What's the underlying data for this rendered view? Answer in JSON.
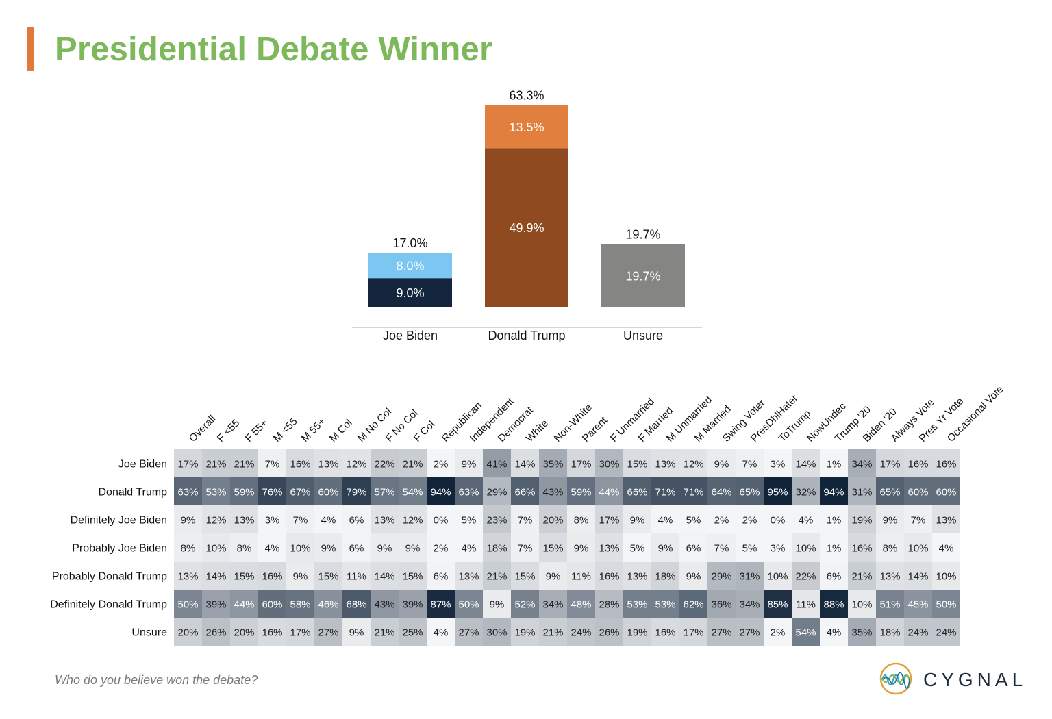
{
  "title": "Presidential Debate Winner",
  "footnote": "Who do you believe won the debate?",
  "brand": {
    "name": "CYGNAL"
  },
  "chart_data": [
    {
      "type": "bar",
      "stacked": true,
      "categories": [
        "Joe Biden",
        "Donald Trump",
        "Unsure"
      ],
      "totals": [
        17.0,
        63.3,
        19.7
      ],
      "total_labels": [
        "17.0%",
        "63.3%",
        "19.7%"
      ],
      "segments": [
        [
          {
            "value": 9.0,
            "label": "9.0%",
            "color": "#14263E"
          },
          {
            "value": 8.0,
            "label": "8.0%",
            "color": "#7CC7F2"
          }
        ],
        [
          {
            "value": 49.9,
            "label": "49.9%",
            "color": "#8F4A1F"
          },
          {
            "value": 13.5,
            "label": "13.5%",
            "color": "#E07F3E"
          }
        ],
        [
          {
            "value": 19.7,
            "label": "19.7%",
            "color": "#858684"
          }
        ]
      ],
      "ylim": [
        0,
        63.3
      ]
    },
    {
      "type": "heatmap",
      "columns": [
        "Overall",
        "F <55",
        "F 55+",
        "M <55",
        "M 55+",
        "M Col",
        "M No Col",
        "F No Col",
        "F Col",
        "Republican",
        "Independent",
        "Democrat",
        "White",
        "Non-White",
        "Parent",
        "F Unmarried",
        "F Married",
        "M Unmarried",
        "M Married",
        "Swing Voter",
        "PresDblHater",
        "ToTrump",
        "NowUndec",
        "Trump '20",
        "Biden '20",
        "Always Vote",
        "Pres Yr Vote",
        "Occasional Vote"
      ],
      "rows": [
        "Joe Biden",
        "Donald Trump",
        "Definitely Joe Biden",
        "Probably Joe Biden",
        "Probably Donald Trump",
        "Definitely Donald Trump",
        "Unsure"
      ],
      "values": [
        [
          17,
          21,
          21,
          7,
          16,
          13,
          12,
          22,
          21,
          2,
          9,
          41,
          14,
          35,
          17,
          30,
          15,
          13,
          12,
          9,
          7,
          3,
          14,
          1,
          34,
          17,
          16,
          16
        ],
        [
          63,
          53,
          59,
          76,
          67,
          60,
          79,
          57,
          54,
          94,
          63,
          29,
          66,
          43,
          59,
          44,
          66,
          71,
          71,
          64,
          65,
          95,
          32,
          94,
          31,
          65,
          60,
          60
        ],
        [
          9,
          12,
          13,
          3,
          7,
          4,
          6,
          13,
          12,
          0,
          5,
          23,
          7,
          20,
          8,
          17,
          9,
          4,
          5,
          2,
          2,
          0,
          4,
          1,
          19,
          9,
          7,
          13
        ],
        [
          8,
          10,
          8,
          4,
          10,
          9,
          6,
          9,
          9,
          2,
          4,
          18,
          7,
          15,
          9,
          13,
          5,
          9,
          6,
          7,
          5,
          3,
          10,
          1,
          16,
          8,
          10,
          4
        ],
        [
          13,
          14,
          15,
          16,
          9,
          15,
          11,
          14,
          15,
          6,
          13,
          21,
          15,
          9,
          11,
          16,
          13,
          18,
          9,
          29,
          31,
          10,
          22,
          6,
          21,
          13,
          14,
          10
        ],
        [
          50,
          39,
          44,
          60,
          58,
          46,
          68,
          43,
          39,
          87,
          50,
          9,
          52,
          34,
          48,
          28,
          53,
          53,
          62,
          36,
          34,
          85,
          11,
          88,
          10,
          51,
          45,
          50
        ],
        [
          20,
          26,
          20,
          16,
          17,
          27,
          9,
          21,
          25,
          4,
          27,
          30,
          19,
          21,
          24,
          26,
          19,
          16,
          17,
          27,
          27,
          2,
          54,
          4,
          35,
          18,
          24,
          24
        ]
      ],
      "value_suffix": "%",
      "color_low": "#F4F5F6",
      "color_high": "#12243A"
    }
  ]
}
